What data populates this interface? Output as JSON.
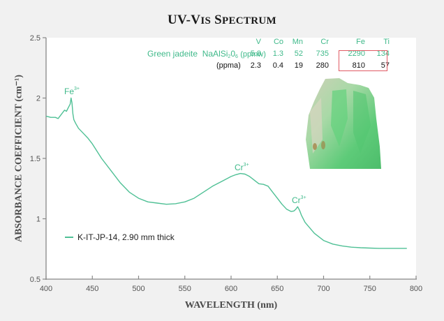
{
  "title": {
    "main": "UV-Vis Spectrum",
    "part1": "UV-V",
    "part1_sc": "IS",
    "part2": "S",
    "part2_sc": "PECTRUM"
  },
  "axes": {
    "x_label": "WAVELENGTH (nm)",
    "y_label": "ABSORBANCE COEFFICIENT (cm⁻¹)",
    "x_ticks": [
      "400",
      "450",
      "500",
      "550",
      "600",
      "650",
      "700",
      "750",
      "800"
    ],
    "y_ticks": [
      "0.5",
      "1",
      "1.5",
      "2",
      "2.5"
    ]
  },
  "annotations": {
    "fe3": {
      "base": "Fe",
      "sup": "3+"
    },
    "cr3_a": {
      "base": "Cr",
      "sup": "3+"
    },
    "cr3_b": {
      "base": "Cr",
      "sup": "3+"
    }
  },
  "legend": {
    "label": "K-IT-JP-14, 2.90 mm thick",
    "color": "#4fc095"
  },
  "composition": {
    "sample_label": "Green jadeite",
    "formula_pre": "NaAlSi",
    "formula_sub1": "2",
    "formula_mid": "0",
    "formula_sub2": "6",
    "unit_ppmw": "(ppmw)",
    "unit_ppma": "(ppma)",
    "elements": [
      "V",
      "Co",
      "Mn",
      "Cr",
      "Fe",
      "Ti"
    ],
    "ppmw": [
      "5.8",
      "1.3",
      "52",
      "735",
      "2290",
      "134"
    ],
    "ppma": [
      "2.3",
      "0.4",
      "19",
      "280",
      "810",
      "57"
    ],
    "highlighted": [
      "Cr",
      "Fe"
    ],
    "highlight_color": "#e05a64"
  },
  "colors": {
    "series": "#4fc095",
    "accent_text": "#3fb98a",
    "plot_bg": "#ffffff",
    "page_bg": "#f1f1f1"
  },
  "chart_data": {
    "type": "line",
    "title": "UV-Vis Spectrum",
    "xlabel": "WAVELENGTH (nm)",
    "ylabel": "ABSORBANCE COEFFICIENT (cm-1)",
    "xlim": [
      400,
      800
    ],
    "ylim": [
      0.5,
      2.5
    ],
    "grid": false,
    "legend_position": "lower-left",
    "series": [
      {
        "name": "K-IT-JP-14, 2.90 mm thick",
        "x": [
          400,
          405,
          410,
          413,
          415,
          418,
          420,
          422,
          424,
          426,
          427,
          428,
          429,
          430,
          432,
          435,
          440,
          445,
          450,
          460,
          470,
          480,
          490,
          500,
          510,
          520,
          530,
          540,
          550,
          560,
          570,
          580,
          590,
          600,
          605,
          610,
          615,
          620,
          625,
          630,
          635,
          640,
          645,
          650,
          655,
          660,
          665,
          668,
          670,
          672,
          674,
          676,
          680,
          690,
          700,
          710,
          720,
          730,
          740,
          750,
          760,
          770,
          780,
          790
        ],
        "values": [
          1.85,
          1.84,
          1.84,
          1.83,
          1.85,
          1.88,
          1.9,
          1.89,
          1.92,
          1.95,
          2.0,
          1.96,
          1.87,
          1.82,
          1.79,
          1.75,
          1.71,
          1.67,
          1.62,
          1.5,
          1.4,
          1.3,
          1.22,
          1.17,
          1.14,
          1.13,
          1.12,
          1.125,
          1.14,
          1.17,
          1.22,
          1.27,
          1.31,
          1.35,
          1.365,
          1.375,
          1.37,
          1.35,
          1.32,
          1.29,
          1.285,
          1.27,
          1.22,
          1.17,
          1.12,
          1.08,
          1.06,
          1.065,
          1.08,
          1.1,
          1.07,
          1.03,
          0.97,
          0.88,
          0.82,
          0.79,
          0.775,
          0.765,
          0.76,
          0.757,
          0.755,
          0.755,
          0.755,
          0.755
        ]
      }
    ],
    "annotations": [
      {
        "text": "Fe3+",
        "x": 427,
        "y": 2.0
      },
      {
        "text": "Cr3+",
        "x": 613,
        "y": 1.375
      },
      {
        "text": "Cr3+",
        "x": 672,
        "y": 1.1
      }
    ],
    "inset_table": {
      "columns": [
        "V",
        "Co",
        "Mn",
        "Cr",
        "Fe",
        "Ti"
      ],
      "rows": [
        {
          "label": "Green jadeite NaAlSi2O6 (ppmw)",
          "values": [
            5.8,
            1.3,
            52,
            735,
            2290,
            134
          ]
        },
        {
          "label": "(ppma)",
          "values": [
            2.3,
            0.4,
            19,
            280,
            810,
            57
          ]
        }
      ]
    }
  }
}
